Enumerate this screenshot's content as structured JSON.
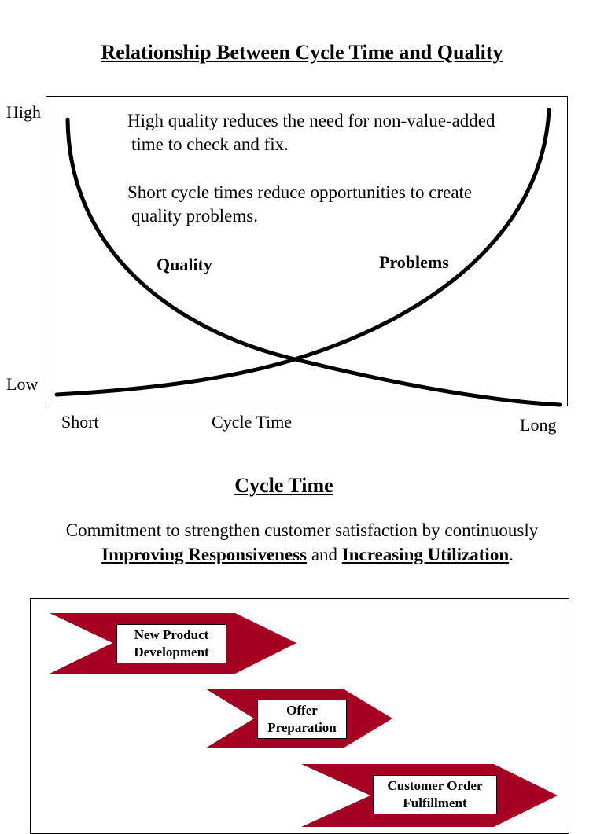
{
  "section1": {
    "title": "Relationship Between Cycle Time and Quality"
  },
  "chart_data": {
    "type": "line",
    "title": "Relationship Between Cycle Time and Quality",
    "xlabel": "Cycle Time",
    "x_tick_labels": [
      "Short",
      "Long"
    ],
    "y_tick_labels": [
      "High",
      "Low"
    ],
    "series": [
      {
        "name": "Quality",
        "trend": "decreasing",
        "color": "#000000"
      },
      {
        "name": "Problems",
        "trend": "increasing",
        "color": "#000000"
      }
    ],
    "annotations": [
      "High quality reduces the need for non-value-added",
      "time to check and fix.",
      "Short cycle times reduce opportunities to create",
      "quality problems."
    ],
    "grid": false,
    "legend": "none"
  },
  "section2": {
    "title": "Cycle Time",
    "commitment_line1": "Commitment to strengthen customer satisfaction by continuously",
    "emphasis1": "Improving Responsiveness",
    "connector": " and ",
    "emphasis2": "Increasing Utilization",
    "period": "."
  },
  "flow": {
    "arrow_color": "#a50021",
    "steps": [
      {
        "label": "New Product\nDevelopment"
      },
      {
        "label": "Offer\nPreparation"
      },
      {
        "label": "Customer Order\nFulfillment"
      }
    ]
  }
}
